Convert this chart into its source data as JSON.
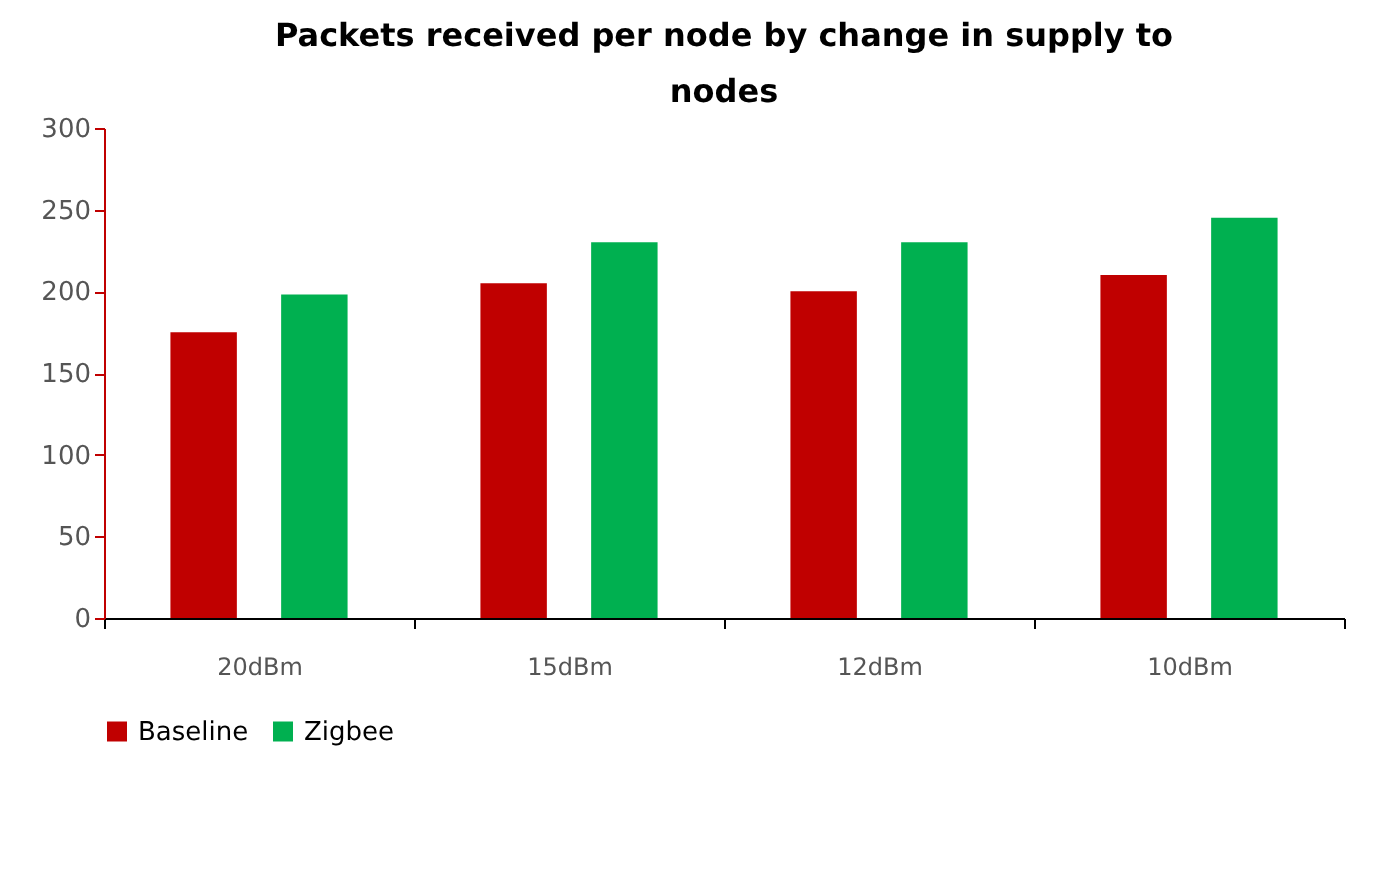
{
  "chart_data": {
    "type": "bar",
    "title": "Packets received per node by change in supply to nodes",
    "categories": [
      "20dBm",
      "15dBm",
      "12dBm",
      "10dBm"
    ],
    "series": [
      {
        "name": "Baseline",
        "color": "#c00000",
        "values": [
          175,
          205,
          200,
          210
        ]
      },
      {
        "name": "Zigbee",
        "color": "#00b050",
        "values": [
          198,
          230,
          230,
          245
        ]
      }
    ],
    "ylim": [
      0,
      300
    ],
    "yticks": [
      0,
      50,
      100,
      150,
      200,
      250,
      300
    ],
    "grid": false,
    "legend": "bottom"
  }
}
